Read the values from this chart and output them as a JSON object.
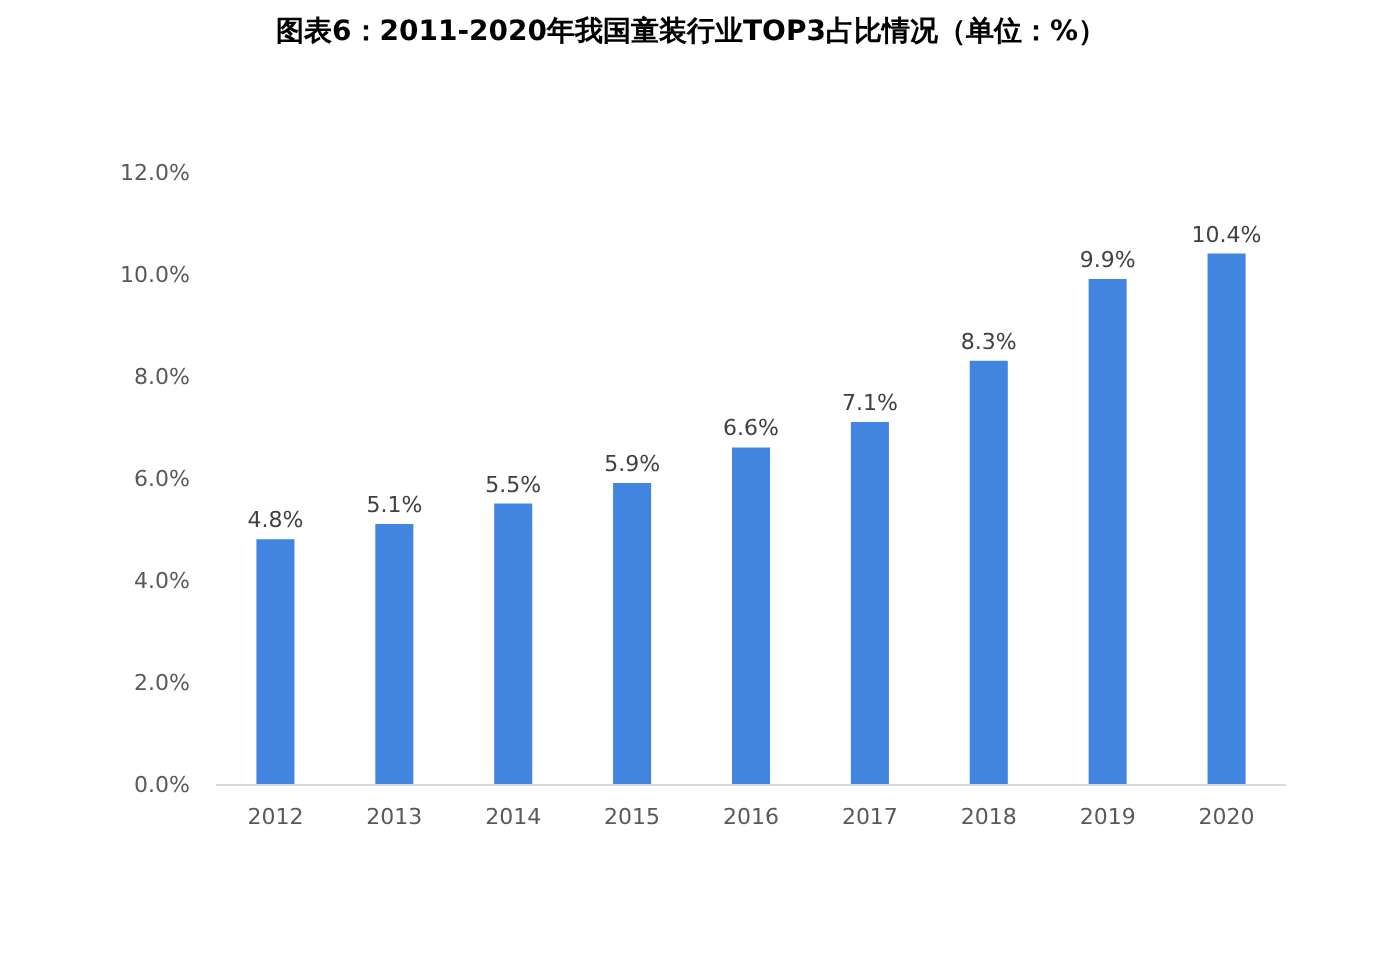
{
  "chart_data": {
    "type": "bar",
    "title": "图表6：2011-2020年我国童装行业TOP3占比情况（单位：%）",
    "categories": [
      "2012",
      "2013",
      "2014",
      "2015",
      "2016",
      "2017",
      "2018",
      "2019",
      "2020"
    ],
    "values": [
      4.8,
      5.1,
      5.5,
      5.9,
      6.6,
      7.1,
      8.3,
      9.9,
      10.4
    ],
    "value_labels": [
      "4.8%",
      "5.1%",
      "5.5%",
      "5.9%",
      "6.6%",
      "7.1%",
      "8.3%",
      "9.9%",
      "10.4%"
    ],
    "color": "#4285e1",
    "ylim": [
      0,
      12
    ],
    "yticks": [
      {
        "value": 0,
        "label": "0.0%"
      },
      {
        "value": 2,
        "label": "2.0%"
      },
      {
        "value": 4,
        "label": "4.0%"
      },
      {
        "value": 6,
        "label": "6.0%"
      },
      {
        "value": 8,
        "label": "8.0%"
      },
      {
        "value": 10,
        "label": "10.0%"
      },
      {
        "value": 12,
        "label": "12.0%"
      }
    ]
  }
}
